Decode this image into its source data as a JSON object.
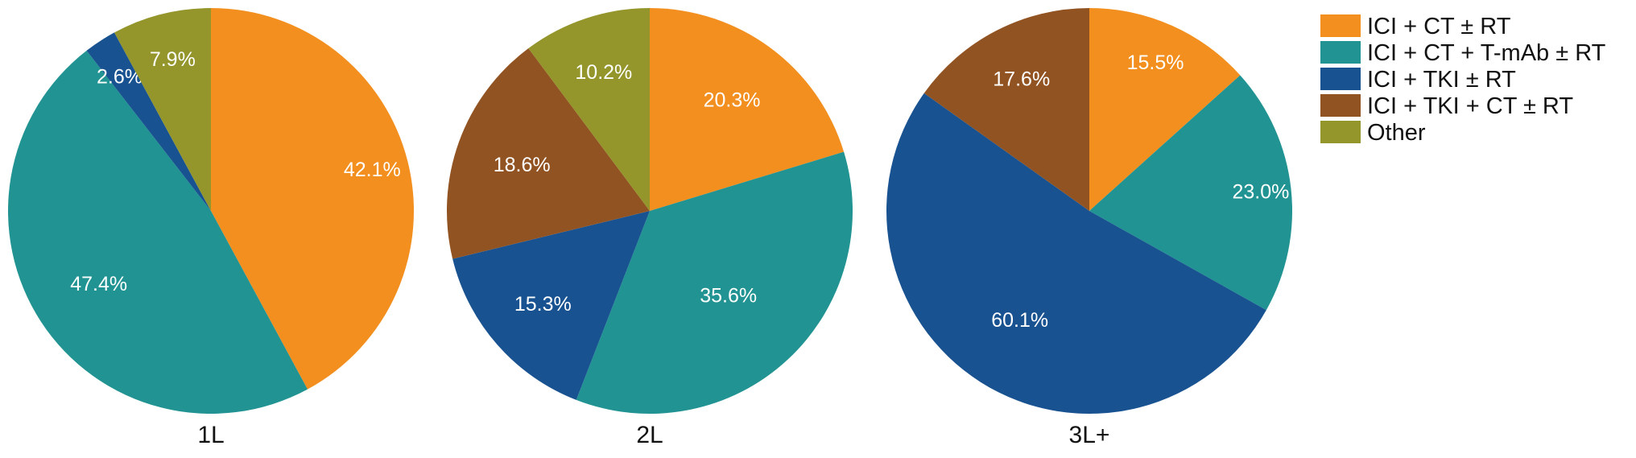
{
  "chart_data": {
    "type": "pie",
    "categories": [
      "ICI + CT ± RT",
      "ICI + CT + T-mAb ± RT",
      "ICI + TKI ± RT",
      "ICI + TKI + CT ± RT",
      "Other"
    ],
    "colors": [
      "#f28f1f",
      "#209392",
      "#185290",
      "#925322",
      "#94952b"
    ],
    "legend": {
      "position": "top-right"
    },
    "pies": [
      {
        "name": "1L",
        "values": [
          42.1,
          47.4,
          2.6,
          0,
          7.9
        ],
        "labels": [
          "42.1%",
          "47.4%",
          "2.6%",
          "",
          "7.9%"
        ]
      },
      {
        "name": "2L",
        "values": [
          20.3,
          35.6,
          15.3,
          18.6,
          10.2
        ],
        "labels": [
          "20.3%",
          "35.6%",
          "15.3%",
          "18.6%",
          "10.2%"
        ]
      },
      {
        "name": "3L+",
        "values": [
          15.5,
          23.0,
          60.1,
          17.6,
          0
        ],
        "labels": [
          "15.5%",
          "23.0%",
          "60.1%",
          "17.6%",
          ""
        ]
      }
    ]
  }
}
